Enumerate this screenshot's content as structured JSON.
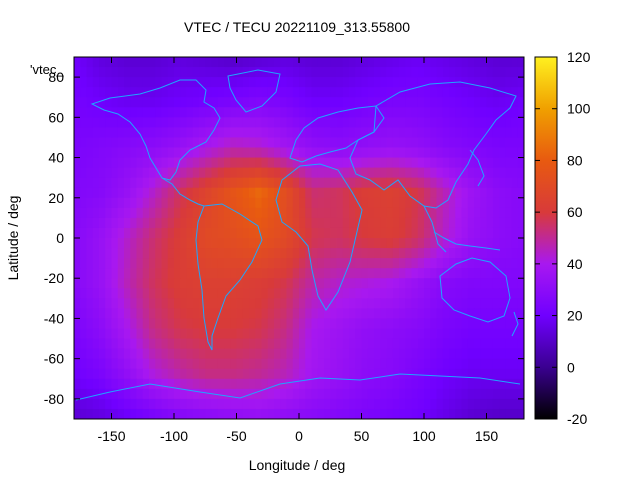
{
  "chart_data": {
    "type": "heatmap",
    "title": "VTEC / TECU 20221109_313.55800",
    "xlabel": "Longitude / deg",
    "ylabel": "Latitude / deg",
    "xlim": [
      -180,
      180
    ],
    "ylim": [
      -90,
      90
    ],
    "xticks": [
      -150,
      -100,
      -50,
      0,
      50,
      100,
      150
    ],
    "yticks": [
      -80,
      -60,
      -40,
      -20,
      0,
      20,
      40,
      60,
      80
    ],
    "colorbar": {
      "min": -20,
      "max": 120,
      "ticks": [
        -20,
        0,
        20,
        40,
        60,
        80,
        100,
        120
      ],
      "palette": [
        "#000000",
        "#3a0090",
        "#7000ff",
        "#a818f0",
        "#d83a3a",
        "#e85a10",
        "#f0a000",
        "#fff020"
      ]
    },
    "legend_key": "'vtec_",
    "values": [
      [
        20,
        14,
        12,
        12,
        14,
        12,
        10,
        12,
        14,
        12,
        12,
        14,
        16,
        18,
        16,
        14,
        12,
        12
      ],
      [
        22,
        20,
        18,
        18,
        20,
        22,
        24,
        26,
        24,
        20,
        20,
        22,
        24,
        24,
        22,
        20,
        18,
        20
      ],
      [
        24,
        26,
        28,
        30,
        34,
        40,
        46,
        44,
        38,
        32,
        30,
        32,
        34,
        32,
        28,
        26,
        24,
        24
      ],
      [
        26,
        28,
        34,
        44,
        56,
        66,
        76,
        84,
        72,
        54,
        56,
        62,
        64,
        58,
        46,
        36,
        30,
        28
      ],
      [
        28,
        34,
        44,
        54,
        62,
        70,
        72,
        76,
        70,
        58,
        56,
        60,
        62,
        56,
        44,
        34,
        30,
        28
      ],
      [
        28,
        34,
        46,
        56,
        62,
        64,
        64,
        62,
        58,
        48,
        44,
        42,
        40,
        34,
        28,
        26,
        26,
        26
      ],
      [
        24,
        30,
        40,
        52,
        58,
        60,
        60,
        58,
        52,
        40,
        36,
        32,
        30,
        28,
        24,
        22,
        22,
        22
      ],
      [
        20,
        24,
        32,
        42,
        48,
        52,
        52,
        50,
        46,
        38,
        34,
        30,
        28,
        24,
        20,
        18,
        18,
        18
      ],
      [
        12,
        14,
        18,
        22,
        26,
        28,
        30,
        32,
        30,
        28,
        26,
        24,
        22,
        20,
        16,
        12,
        10,
        10
      ]
    ]
  }
}
